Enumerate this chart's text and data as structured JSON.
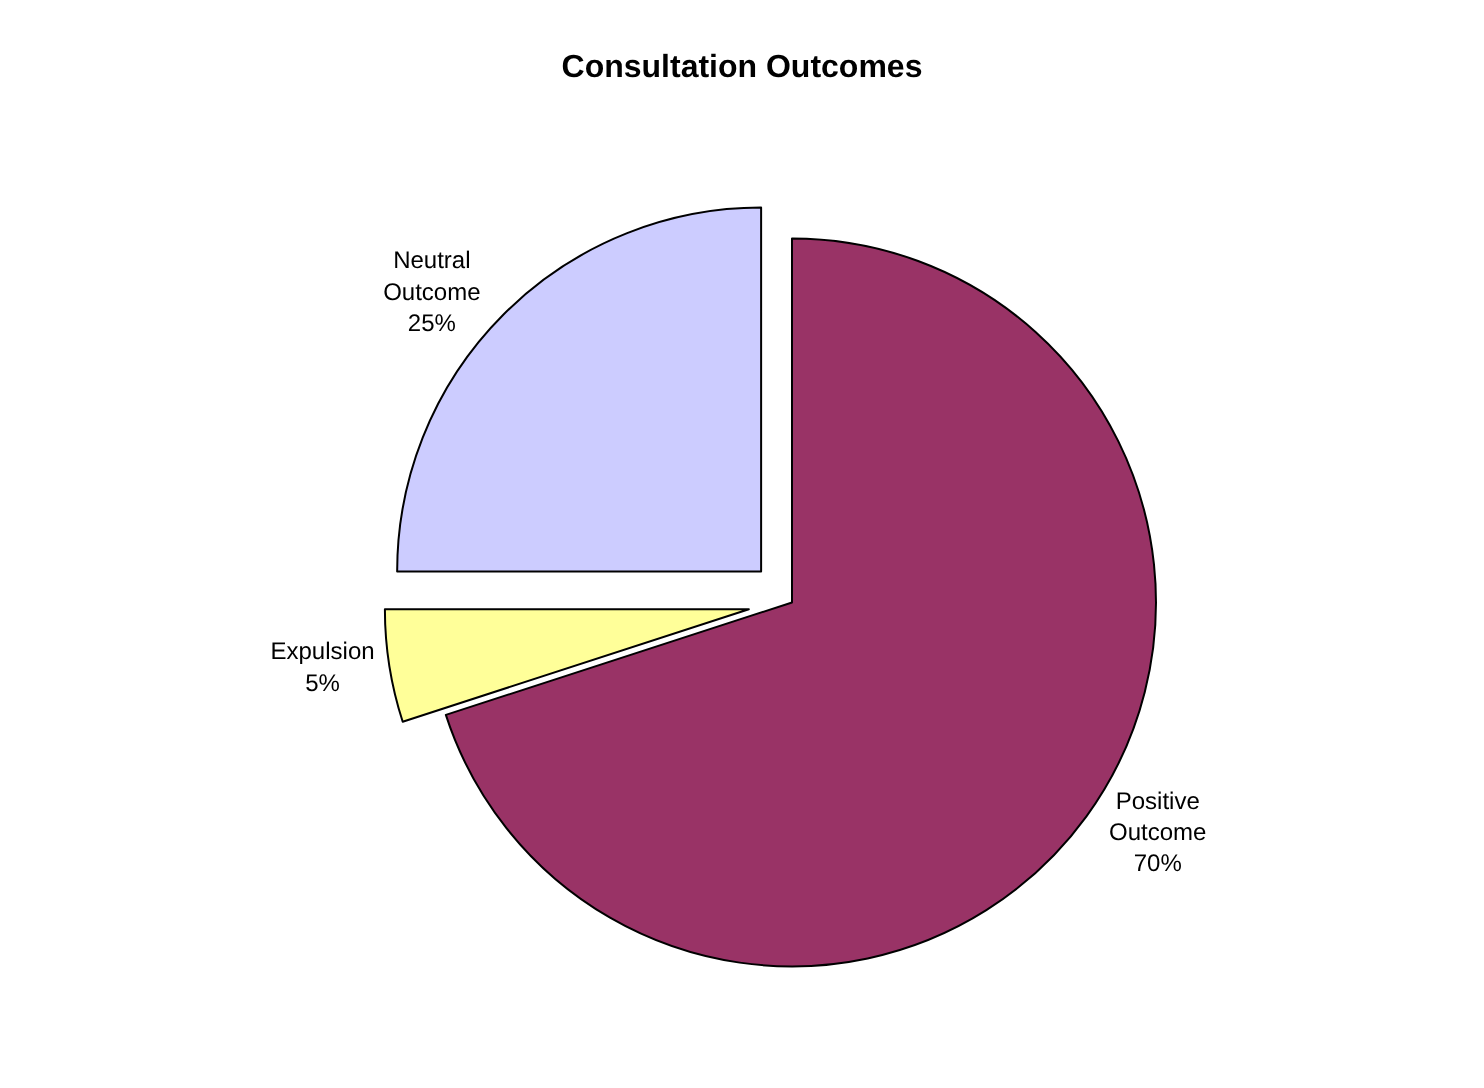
{
  "chart_data": {
    "type": "pie",
    "title": "Consultation Outcomes",
    "categories": [
      "Positive Outcome",
      "Expulsion",
      "Neutral Outcome"
    ],
    "values": [
      70,
      5,
      25
    ],
    "value_labels": [
      "70%",
      "5%",
      "25%"
    ],
    "colors": [
      "#993366",
      "#ffff99",
      "#ccccff"
    ],
    "legend": false
  }
}
